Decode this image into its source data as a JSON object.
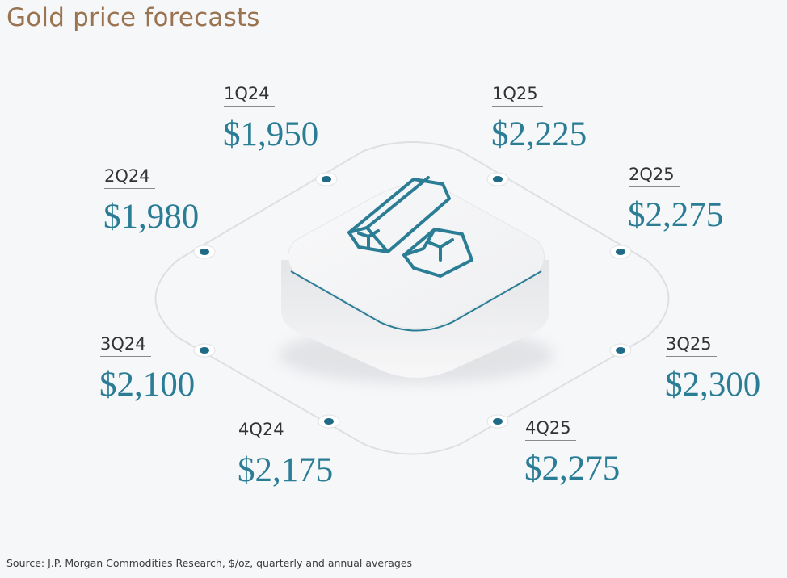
{
  "title": "Gold price forecasts",
  "source": "Source: J.P. Morgan Commodities Research, $/oz, quarterly and annual averages",
  "colors": {
    "title": "#9a7350",
    "value": "#2a7d95",
    "dot": "#1f6a86",
    "icon": "#2a7d95"
  },
  "icon": "gold-bars-icon",
  "chart_data": {
    "type": "table",
    "title": "Gold price forecasts",
    "unit": "$/oz",
    "categories": [
      "1Q24",
      "2Q24",
      "3Q24",
      "4Q24",
      "1Q25",
      "2Q25",
      "3Q25",
      "4Q25"
    ],
    "values": [
      1950,
      1980,
      2100,
      2175,
      2225,
      2275,
      2300,
      2275
    ],
    "labels": [
      "$1,950",
      "$1,980",
      "$2,100",
      "$2,175",
      "$2,225",
      "$2,275",
      "$2,300",
      "$2,275"
    ]
  }
}
